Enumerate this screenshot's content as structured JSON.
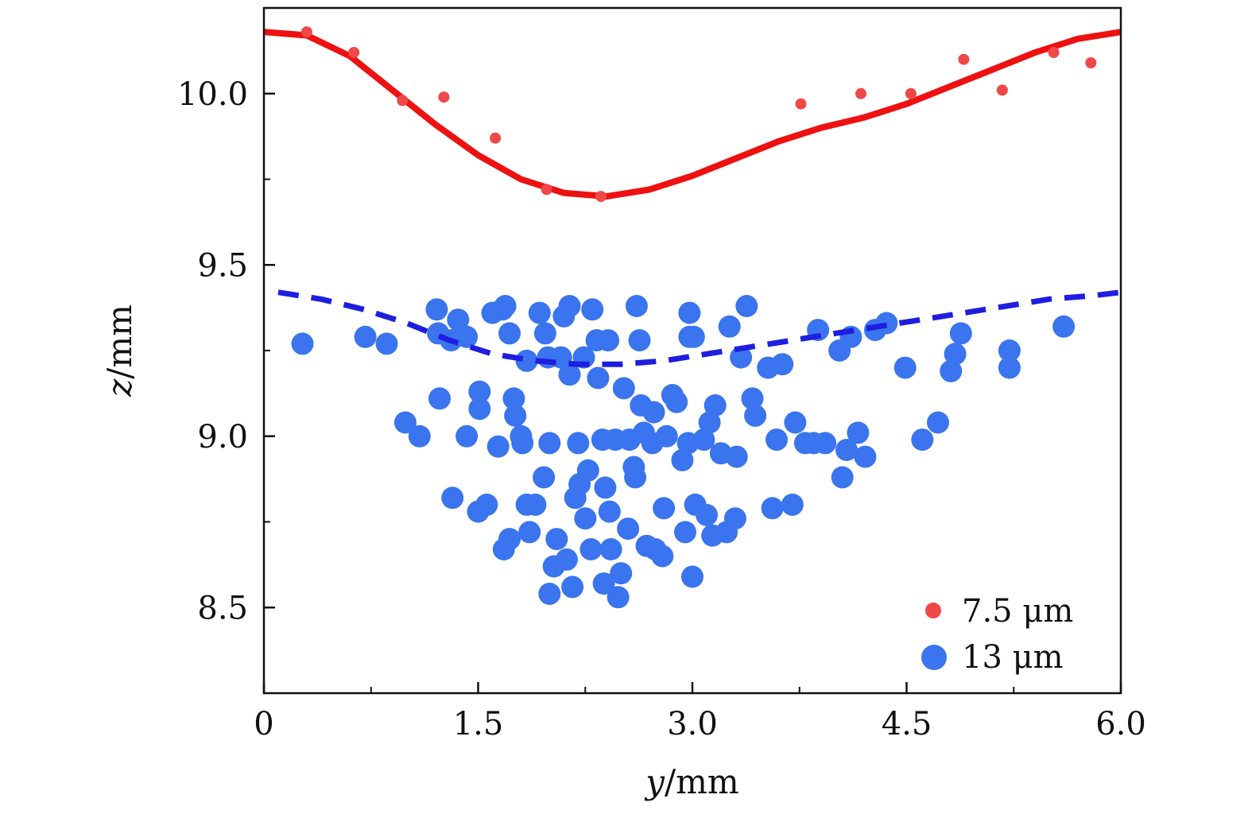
{
  "chart_data": {
    "type": "scatter",
    "title": "",
    "xlabel": {
      "var": "y",
      "unit": "/mm"
    },
    "ylabel": {
      "var": "z",
      "unit": "/mm"
    },
    "xlim": [
      0,
      6.0
    ],
    "ylim": [
      8.25,
      10.25
    ],
    "xticks": [
      {
        "value": 0,
        "label": "0"
      },
      {
        "value": 1.5,
        "label": "1.5"
      },
      {
        "value": 3.0,
        "label": "3.0"
      },
      {
        "value": 4.5,
        "label": "4.5"
      },
      {
        "value": 6.0,
        "label": "6.0"
      }
    ],
    "yticks": [
      {
        "value": 8.5,
        "label": "8.5"
      },
      {
        "value": 9.0,
        "label": "9.0"
      },
      {
        "value": 9.5,
        "label": "9.5"
      },
      {
        "value": 10.0,
        "label": "10.0"
      }
    ],
    "legend_position": "bottom-right",
    "series": [
      {
        "name": "7.5 μm",
        "kind": "points",
        "color": "#f04848",
        "points": [
          [
            0.3,
            10.18
          ],
          [
            0.63,
            10.12
          ],
          [
            0.97,
            9.98
          ],
          [
            1.26,
            9.99
          ],
          [
            1.62,
            9.87
          ],
          [
            1.98,
            9.72
          ],
          [
            2.36,
            9.7
          ],
          [
            3.76,
            9.97
          ],
          [
            4.18,
            10.0
          ],
          [
            4.53,
            10.0
          ],
          [
            4.9,
            10.1
          ],
          [
            5.17,
            10.01
          ],
          [
            5.53,
            10.12
          ],
          [
            5.79,
            10.09
          ]
        ]
      },
      {
        "name": "7.5 μm fit",
        "kind": "line",
        "style": "solid",
        "color": "#ee1111",
        "points": [
          [
            0,
            10.18
          ],
          [
            0.3,
            10.17
          ],
          [
            0.6,
            10.11
          ],
          [
            0.9,
            10.01
          ],
          [
            1.2,
            9.91
          ],
          [
            1.5,
            9.82
          ],
          [
            1.8,
            9.75
          ],
          [
            2.1,
            9.71
          ],
          [
            2.4,
            9.7
          ],
          [
            2.7,
            9.72
          ],
          [
            3.0,
            9.76
          ],
          [
            3.3,
            9.81
          ],
          [
            3.6,
            9.86
          ],
          [
            3.9,
            9.9
          ],
          [
            4.2,
            9.93
          ],
          [
            4.5,
            9.97
          ],
          [
            4.8,
            10.02
          ],
          [
            5.1,
            10.07
          ],
          [
            5.4,
            10.12
          ],
          [
            5.7,
            10.16
          ],
          [
            6.0,
            10.18
          ]
        ]
      },
      {
        "name": "13 μm",
        "kind": "points",
        "color": "#3a74ee",
        "points": [
          [
            0.27,
            9.27
          ],
          [
            0.71,
            9.29
          ],
          [
            0.86,
            9.27
          ],
          [
            0.99,
            9.04
          ],
          [
            1.09,
            9.0
          ],
          [
            1.21,
            9.37
          ],
          [
            1.22,
            9.3
          ],
          [
            1.23,
            9.11
          ],
          [
            1.31,
            9.28
          ],
          [
            1.32,
            8.82
          ],
          [
            1.36,
            9.34
          ],
          [
            1.42,
            9.29
          ],
          [
            1.42,
            9.0
          ],
          [
            1.51,
            9.08
          ],
          [
            1.51,
            9.13
          ],
          [
            1.5,
            8.78
          ],
          [
            1.56,
            8.8
          ],
          [
            1.6,
            9.36
          ],
          [
            1.64,
            8.97
          ],
          [
            1.67,
            9.37
          ],
          [
            1.69,
            9.38
          ],
          [
            1.72,
            9.3
          ],
          [
            1.75,
            9.11
          ],
          [
            1.76,
            9.06
          ],
          [
            1.68,
            8.67
          ],
          [
            1.72,
            8.7
          ],
          [
            1.8,
            9.0
          ],
          [
            1.81,
            8.98
          ],
          [
            1.84,
            8.8
          ],
          [
            1.84,
            9.22
          ],
          [
            1.86,
            8.72
          ],
          [
            1.9,
            8.8
          ],
          [
            1.93,
            9.36
          ],
          [
            1.96,
            8.88
          ],
          [
            1.97,
            9.3
          ],
          [
            1.99,
            9.23
          ],
          [
            2.0,
            8.54
          ],
          [
            2.0,
            8.98
          ],
          [
            2.03,
            8.62
          ],
          [
            2.05,
            8.7
          ],
          [
            2.08,
            9.23
          ],
          [
            2.1,
            9.35
          ],
          [
            2.12,
            8.64
          ],
          [
            2.14,
            9.18
          ],
          [
            2.14,
            9.38
          ],
          [
            2.16,
            8.56
          ],
          [
            2.18,
            8.82
          ],
          [
            2.2,
            8.98
          ],
          [
            2.21,
            8.86
          ],
          [
            2.24,
            9.23
          ],
          [
            2.25,
            8.76
          ],
          [
            2.27,
            8.9
          ],
          [
            2.29,
            8.67
          ],
          [
            2.3,
            9.37
          ],
          [
            2.33,
            9.28
          ],
          [
            2.34,
            9.17
          ],
          [
            2.37,
            8.99
          ],
          [
            2.38,
            8.57
          ],
          [
            2.39,
            8.85
          ],
          [
            2.41,
            9.28
          ],
          [
            2.42,
            8.78
          ],
          [
            2.43,
            8.67
          ],
          [
            2.46,
            8.99
          ],
          [
            2.48,
            8.53
          ],
          [
            2.5,
            8.6
          ],
          [
            2.52,
            9.14
          ],
          [
            2.55,
            8.73
          ],
          [
            2.56,
            8.99
          ],
          [
            2.59,
            8.91
          ],
          [
            2.6,
            8.88
          ],
          [
            2.61,
            9.38
          ],
          [
            2.63,
            9.28
          ],
          [
            2.64,
            9.09
          ],
          [
            2.66,
            9.01
          ],
          [
            2.68,
            8.68
          ],
          [
            2.72,
            8.98
          ],
          [
            2.73,
            9.07
          ],
          [
            2.74,
            8.67
          ],
          [
            2.79,
            8.65
          ],
          [
            2.8,
            8.79
          ],
          [
            2.82,
            9.0
          ],
          [
            2.86,
            9.12
          ],
          [
            2.89,
            9.1
          ],
          [
            2.93,
            8.93
          ],
          [
            2.95,
            8.72
          ],
          [
            2.98,
            9.36
          ],
          [
            2.97,
            8.98
          ],
          [
            2.98,
            9.29
          ],
          [
            3.0,
            8.59
          ],
          [
            3.02,
            8.8
          ],
          [
            3.01,
            9.29
          ],
          [
            3.08,
            8.99
          ],
          [
            3.1,
            8.77
          ],
          [
            3.12,
            9.04
          ],
          [
            3.14,
            8.71
          ],
          [
            3.16,
            9.09
          ],
          [
            3.2,
            8.95
          ],
          [
            3.24,
            8.72
          ],
          [
            3.26,
            9.32
          ],
          [
            3.3,
            8.76
          ],
          [
            3.31,
            8.94
          ],
          [
            3.34,
            9.23
          ],
          [
            3.38,
            9.38
          ],
          [
            3.42,
            9.11
          ],
          [
            3.44,
            9.06
          ],
          [
            3.53,
            9.2
          ],
          [
            3.56,
            8.79
          ],
          [
            3.59,
            8.99
          ],
          [
            3.63,
            9.21
          ],
          [
            3.7,
            8.8
          ],
          [
            3.72,
            9.04
          ],
          [
            3.79,
            8.98
          ],
          [
            3.85,
            8.98
          ],
          [
            3.88,
            9.31
          ],
          [
            3.93,
            8.98
          ],
          [
            4.03,
            9.25
          ],
          [
            4.05,
            8.88
          ],
          [
            4.08,
            8.96
          ],
          [
            4.11,
            9.29
          ],
          [
            4.16,
            9.01
          ],
          [
            4.21,
            8.94
          ],
          [
            4.28,
            9.31
          ],
          [
            4.36,
            9.33
          ],
          [
            4.49,
            9.2
          ],
          [
            4.61,
            8.99
          ],
          [
            4.72,
            9.04
          ],
          [
            4.81,
            9.19
          ],
          [
            4.84,
            9.24
          ],
          [
            4.88,
            9.3
          ],
          [
            5.22,
            9.25
          ],
          [
            5.22,
            9.2
          ],
          [
            5.6,
            9.32
          ]
        ]
      },
      {
        "name": "13 μm fit",
        "kind": "line",
        "style": "dashed",
        "color": "#1e1ee0",
        "points": [
          [
            0.1,
            9.42
          ],
          [
            0.4,
            9.4
          ],
          [
            0.7,
            9.37
          ],
          [
            1.0,
            9.33
          ],
          [
            1.3,
            9.28
          ],
          [
            1.6,
            9.24
          ],
          [
            1.9,
            9.22
          ],
          [
            2.2,
            9.21
          ],
          [
            2.5,
            9.21
          ],
          [
            2.8,
            9.22
          ],
          [
            3.1,
            9.24
          ],
          [
            3.4,
            9.26
          ],
          [
            3.7,
            9.28
          ],
          [
            4.0,
            9.3
          ],
          [
            4.3,
            9.32
          ],
          [
            4.6,
            9.34
          ],
          [
            4.9,
            9.36
          ],
          [
            5.2,
            9.38
          ],
          [
            5.5,
            9.4
          ],
          [
            5.8,
            9.41
          ],
          [
            6.0,
            9.42
          ]
        ]
      }
    ],
    "legend": [
      {
        "label": "7.5 μm",
        "color": "#f04848",
        "marker": "small-circle"
      },
      {
        "label": "13 μm",
        "color": "#3a74ee",
        "marker": "large-circle"
      }
    ]
  }
}
